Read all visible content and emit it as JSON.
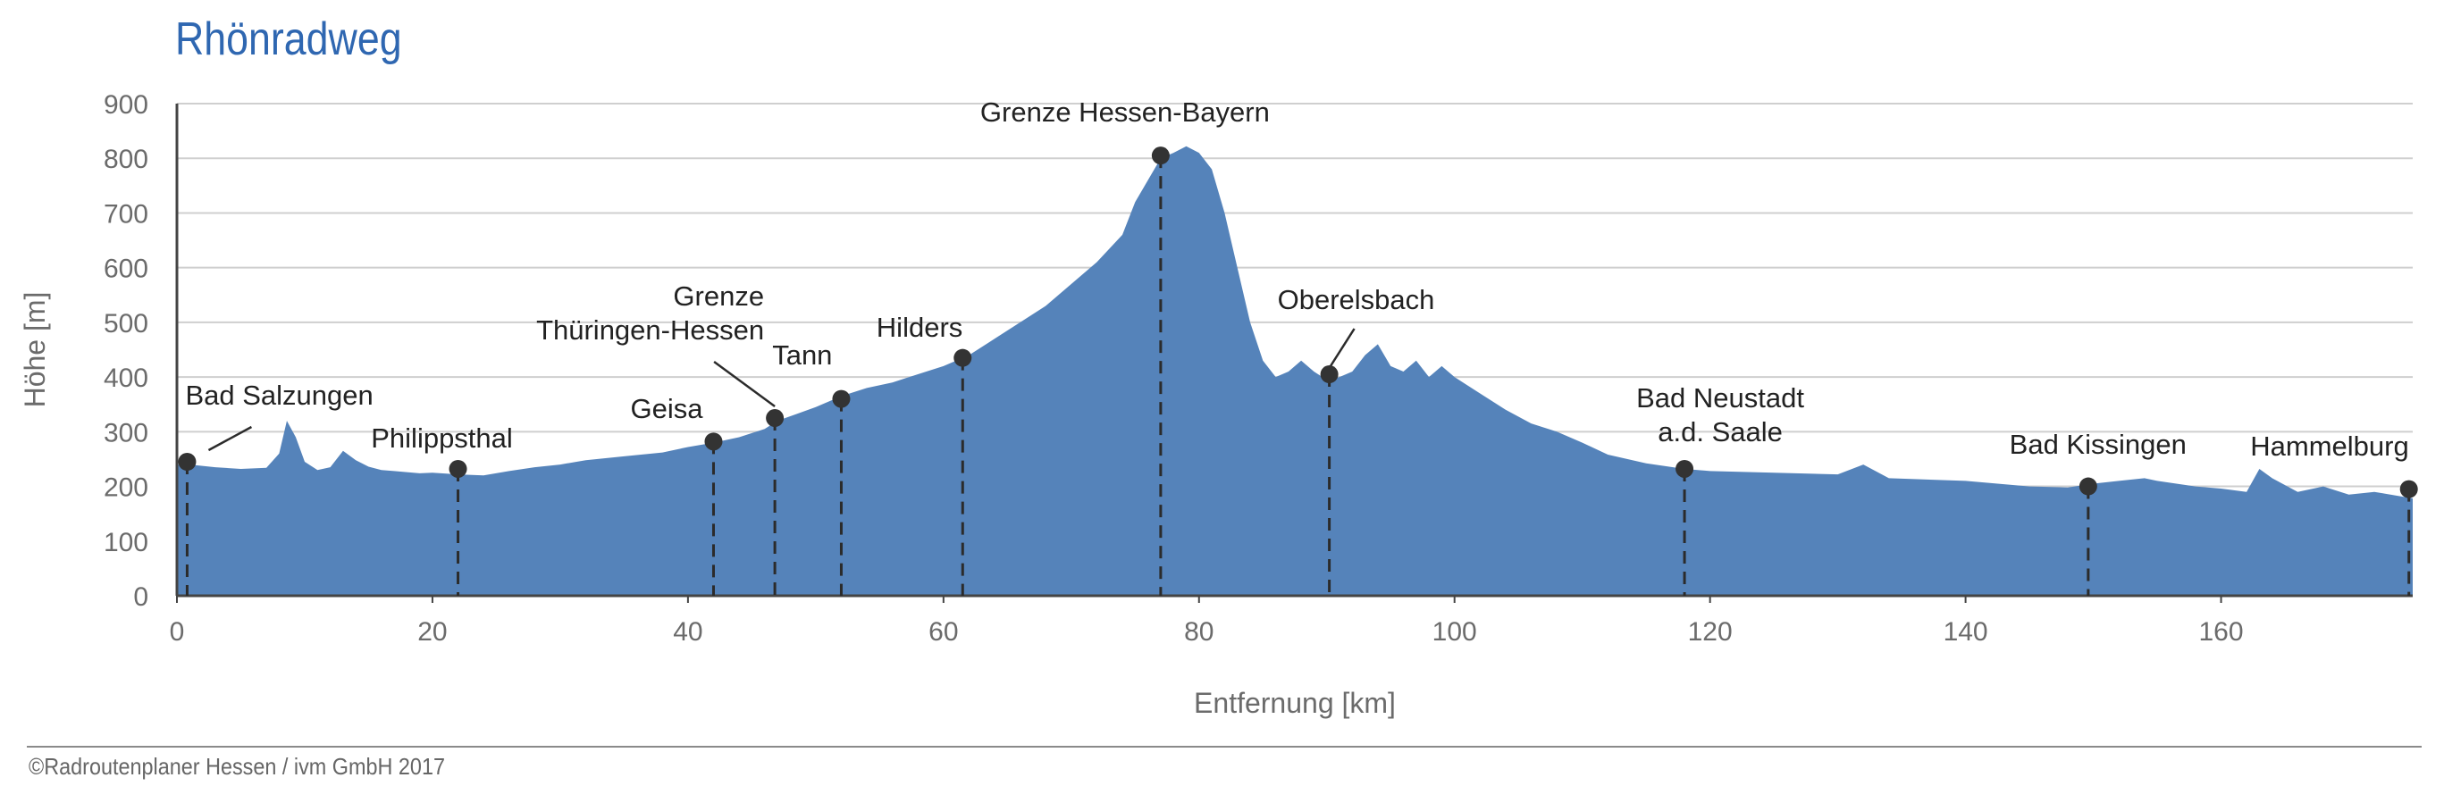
{
  "title": "Rhönradweg",
  "footer": "©Radroutenplaner Hessen / ivm GmbH 2017",
  "colors": {
    "area": "#5583ba",
    "title": "#2f67b1",
    "grid": "#cfcfcf",
    "marker": "#333333",
    "text": "#6b6b6b"
  },
  "chart_data": {
    "type": "area",
    "title": "Rhönradweg",
    "xlabel": "Entfernung [km]",
    "ylabel": "Höhe [m]",
    "xlim": [
      0,
      175
    ],
    "ylim": [
      0,
      900
    ],
    "xticks": [
      0,
      20,
      40,
      60,
      80,
      100,
      120,
      140,
      160
    ],
    "yticks": [
      0,
      100,
      200,
      300,
      400,
      500,
      600,
      700,
      800,
      900
    ],
    "grid": "horizontal",
    "profile": {
      "x": [
        0,
        1,
        3,
        5,
        7,
        8,
        8.6,
        9.3,
        10,
        11,
        12,
        13,
        14,
        15,
        16,
        17,
        18,
        19,
        20,
        22,
        24,
        26,
        28,
        30,
        32,
        35,
        38,
        40,
        42,
        44,
        46,
        47,
        50,
        52,
        54,
        56,
        58,
        60,
        62,
        64,
        66,
        68,
        70,
        72,
        74,
        75,
        76,
        77,
        78,
        79,
        80,
        81,
        82,
        83,
        84,
        85,
        86,
        87,
        88,
        89,
        90,
        91,
        92,
        93,
        94,
        95,
        96,
        97,
        98,
        99,
        100,
        102,
        104,
        106,
        108,
        110,
        112,
        115,
        118,
        120,
        125,
        130,
        132,
        134,
        140,
        145,
        148,
        150,
        152,
        154,
        155,
        158,
        160,
        162,
        163,
        164,
        166,
        168,
        170,
        172,
        175
      ],
      "y": [
        240,
        240,
        235,
        232,
        234,
        260,
        320,
        290,
        245,
        230,
        235,
        265,
        248,
        236,
        230,
        228,
        226,
        224,
        225,
        222,
        220,
        228,
        235,
        240,
        248,
        255,
        262,
        272,
        280,
        290,
        305,
        320,
        345,
        365,
        380,
        390,
        405,
        420,
        440,
        470,
        500,
        530,
        570,
        610,
        660,
        720,
        760,
        800,
        810,
        822,
        810,
        780,
        700,
        600,
        500,
        430,
        400,
        410,
        430,
        410,
        395,
        400,
        410,
        440,
        460,
        420,
        410,
        430,
        400,
        420,
        400,
        370,
        340,
        315,
        300,
        280,
        258,
        242,
        232,
        228,
        225,
        222,
        240,
        215,
        210,
        200,
        198,
        205,
        210,
        215,
        210,
        200,
        196,
        190,
        232,
        215,
        190,
        200,
        185,
        190,
        178
      ]
    },
    "locations": [
      {
        "name": "Bad Salzungen",
        "x": 0.8,
        "y": 245
      },
      {
        "name": "Philippsthal",
        "x": 22,
        "y": 232
      },
      {
        "name": "Geisa",
        "x": 42,
        "y": 282
      },
      {
        "name": "Grenze\nThüringen-Hessen",
        "x": 46.8,
        "y": 325
      },
      {
        "name": "Tann",
        "x": 52,
        "y": 360
      },
      {
        "name": "Hilders",
        "x": 61.5,
        "y": 435
      },
      {
        "name": "Grenze Hessen-Bayern",
        "x": 77,
        "y": 805
      },
      {
        "name": "Oberelsbach",
        "x": 90.2,
        "y": 405
      },
      {
        "name": "Bad Neustadt\na.d. Saale",
        "x": 118,
        "y": 232
      },
      {
        "name": "Bad Kissingen",
        "x": 149.6,
        "y": 200
      },
      {
        "name": "Hammelburg",
        "x": 174.7,
        "y": 195
      }
    ]
  }
}
